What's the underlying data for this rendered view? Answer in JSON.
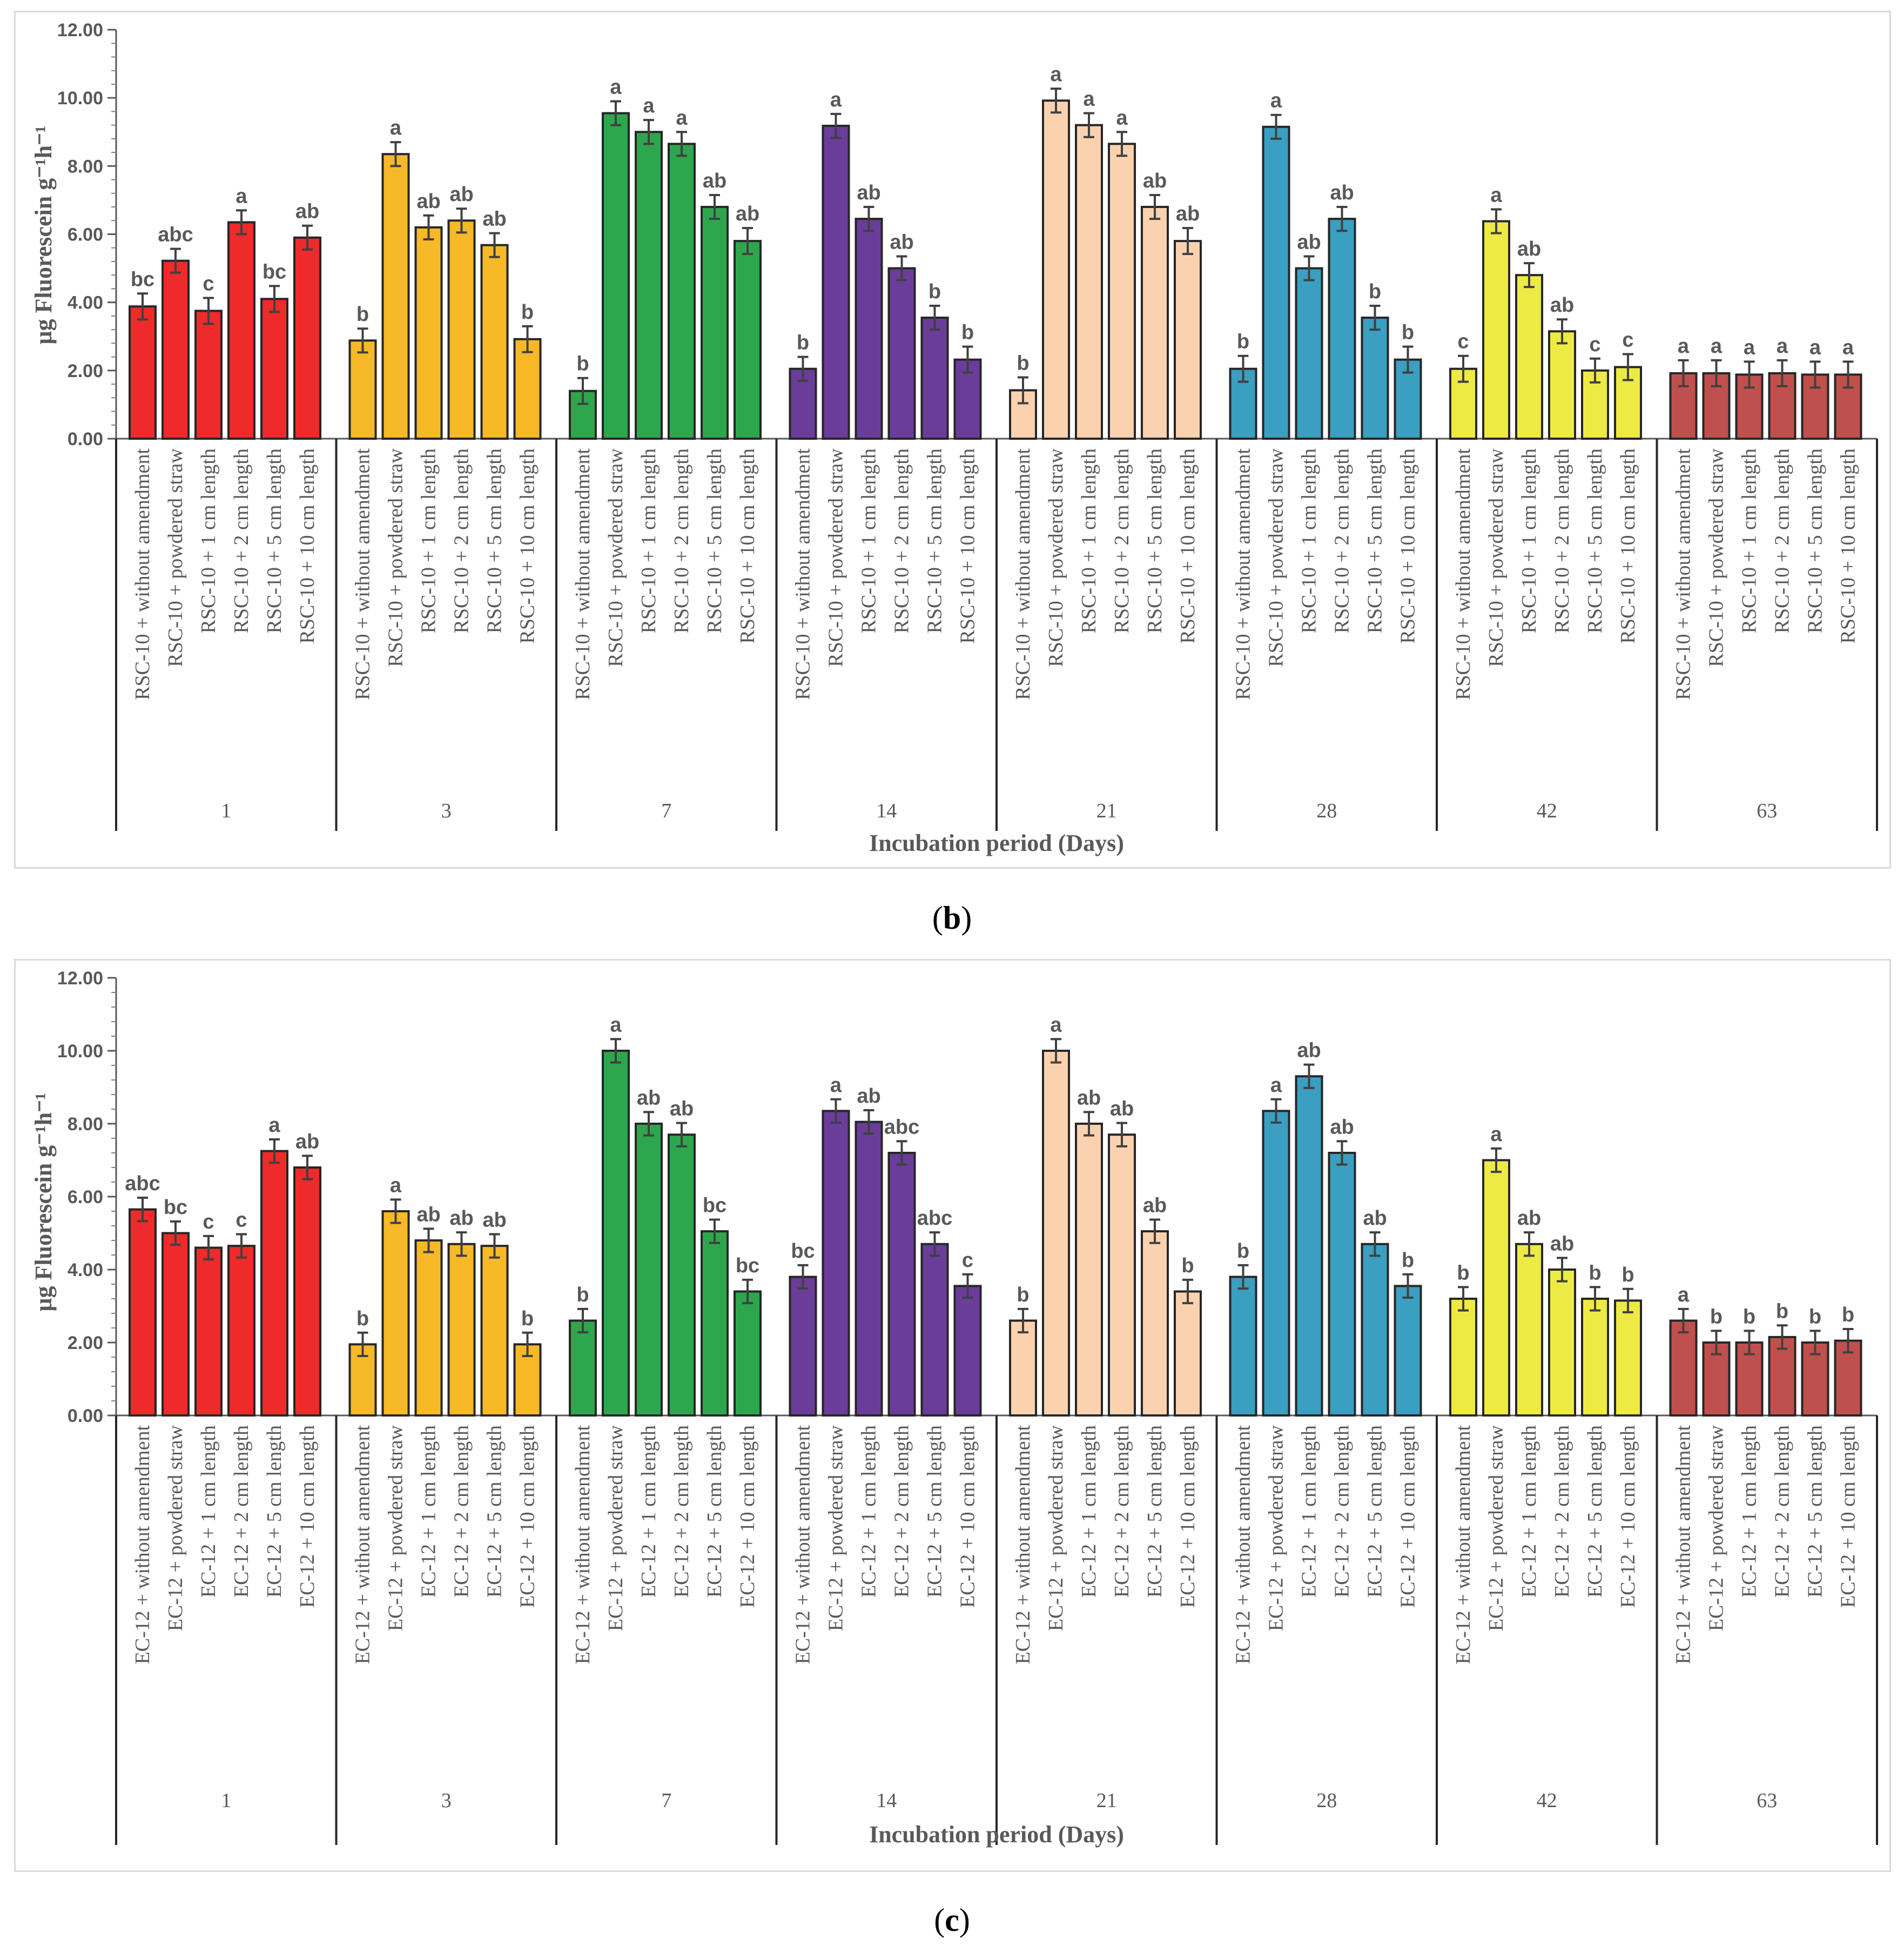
{
  "panel_labels": {
    "b": "b",
    "c": "c"
  },
  "chart_data": [
    {
      "id": "b",
      "type": "bar",
      "ylabel": "μg Fluorescein g⁻¹h⁻¹",
      "xlabel": "Incubation period (Days)",
      "ylim": [
        0,
        12
      ],
      "yticks": [
        "0.00",
        "2.00",
        "4.00",
        "6.00",
        "8.00",
        "10.00",
        "12.00"
      ],
      "groups": [
        "1",
        "3",
        "7",
        "14",
        "21",
        "28",
        "42",
        "63"
      ],
      "categories": [
        "RSC-10 + without amendment",
        "RSC-10 + powdered straw",
        "RSC-10 + 1 cm length",
        "RSC-10 + 2 cm length",
        "RSC-10 + 5 cm length",
        "RSC-10 + 10 cm length"
      ],
      "group_colors": [
        "#ee2a2a",
        "#f7b927",
        "#2ea64e",
        "#6a3d9a",
        "#fbd2b0",
        "#3a9fc0",
        "#eeea44",
        "#c0504d"
      ],
      "values": [
        [
          3.88,
          5.22,
          3.75,
          6.35,
          4.1,
          5.9
        ],
        [
          2.88,
          8.35,
          6.2,
          6.4,
          5.68,
          2.92
        ],
        [
          1.4,
          9.55,
          9.0,
          8.65,
          6.8,
          5.8
        ],
        [
          2.05,
          9.18,
          6.45,
          5.0,
          3.55,
          2.32
        ],
        [
          1.42,
          9.92,
          9.2,
          8.65,
          6.8,
          5.8
        ],
        [
          2.05,
          9.15,
          5.0,
          6.45,
          3.55,
          2.32
        ],
        [
          2.05,
          6.38,
          4.8,
          3.15,
          2.0,
          2.1
        ],
        [
          1.92,
          1.92,
          1.88,
          1.92,
          1.88,
          1.88
        ]
      ],
      "errors": [
        [
          0.38,
          0.35,
          0.38,
          0.35,
          0.38,
          0.35
        ],
        [
          0.35,
          0.35,
          0.35,
          0.35,
          0.35,
          0.38
        ],
        [
          0.38,
          0.35,
          0.35,
          0.35,
          0.35,
          0.38
        ],
        [
          0.35,
          0.35,
          0.35,
          0.35,
          0.35,
          0.38
        ],
        [
          0.38,
          0.35,
          0.35,
          0.35,
          0.35,
          0.38
        ],
        [
          0.38,
          0.35,
          0.35,
          0.35,
          0.35,
          0.38
        ],
        [
          0.38,
          0.35,
          0.35,
          0.35,
          0.35,
          0.38
        ],
        [
          0.38,
          0.38,
          0.38,
          0.38,
          0.38,
          0.38
        ]
      ],
      "letters": [
        [
          "bc",
          "abc",
          "c",
          "a",
          "bc",
          "ab"
        ],
        [
          "b",
          "a",
          "ab",
          "ab",
          "ab",
          "b"
        ],
        [
          "b",
          "a",
          "a",
          "a",
          "ab",
          "ab"
        ],
        [
          "b",
          "a",
          "ab",
          "ab",
          "b",
          "b"
        ],
        [
          "b",
          "a",
          "a",
          "a",
          "ab",
          "ab"
        ],
        [
          "b",
          "a",
          "ab",
          "ab",
          "b",
          "b"
        ],
        [
          "c",
          "a",
          "ab",
          "ab",
          "c",
          "c"
        ],
        [
          "a",
          "a",
          "a",
          "a",
          "a",
          "a"
        ]
      ]
    },
    {
      "id": "c",
      "type": "bar",
      "ylabel": "μg Fluorescein g⁻¹h⁻¹",
      "xlabel": "Incubation period (Days)",
      "ylim": [
        0,
        12
      ],
      "yticks": [
        "0.00",
        "2.00",
        "4.00",
        "6.00",
        "8.00",
        "10.00",
        "12.00"
      ],
      "groups": [
        "1",
        "3",
        "7",
        "14",
        "21",
        "28",
        "42",
        "63"
      ],
      "categories": [
        "EC-12 + without amendment",
        "EC-12 + powdered straw",
        "EC-12 + 1 cm length",
        "EC-12 + 2 cm length",
        "EC-12 + 5 cm length",
        "EC-12 + 10 cm length"
      ],
      "group_colors": [
        "#ee2a2a",
        "#f7b927",
        "#2ea64e",
        "#6a3d9a",
        "#fbd2b0",
        "#3a9fc0",
        "#eeea44",
        "#c0504d"
      ],
      "values": [
        [
          5.65,
          5.0,
          4.6,
          4.65,
          7.25,
          6.8
        ],
        [
          1.95,
          5.6,
          4.8,
          4.7,
          4.65,
          1.95
        ],
        [
          2.6,
          10.0,
          8.0,
          7.7,
          5.05,
          3.4
        ],
        [
          3.8,
          8.35,
          8.05,
          7.2,
          4.7,
          3.55
        ],
        [
          2.6,
          10.0,
          8.0,
          7.7,
          5.05,
          3.4
        ],
        [
          3.8,
          8.35,
          9.3,
          7.2,
          4.7,
          3.55
        ],
        [
          3.2,
          7.0,
          4.7,
          4.0,
          3.2,
          3.15
        ],
        [
          2.6,
          2.0,
          2.0,
          2.15,
          2.0,
          2.05
        ]
      ],
      "errors": [
        [
          0.32,
          0.32,
          0.32,
          0.32,
          0.32,
          0.32
        ],
        [
          0.32,
          0.32,
          0.32,
          0.32,
          0.32,
          0.32
        ],
        [
          0.32,
          0.32,
          0.32,
          0.32,
          0.32,
          0.32
        ],
        [
          0.32,
          0.32,
          0.32,
          0.32,
          0.32,
          0.32
        ],
        [
          0.32,
          0.32,
          0.32,
          0.32,
          0.32,
          0.32
        ],
        [
          0.32,
          0.32,
          0.32,
          0.32,
          0.32,
          0.32
        ],
        [
          0.32,
          0.32,
          0.32,
          0.32,
          0.32,
          0.32
        ],
        [
          0.32,
          0.32,
          0.32,
          0.32,
          0.32,
          0.32
        ]
      ],
      "letters": [
        [
          "abc",
          "bc",
          "c",
          "c",
          "a",
          "ab"
        ],
        [
          "b",
          "a",
          "ab",
          "ab",
          "ab",
          "b"
        ],
        [
          "b",
          "a",
          "ab",
          "ab",
          "bc",
          "bc"
        ],
        [
          "bc",
          "a",
          "ab",
          "abc",
          "abc",
          "c"
        ],
        [
          "b",
          "a",
          "ab",
          "ab",
          "ab",
          "b"
        ],
        [
          "b",
          "a",
          "ab",
          "ab",
          "ab",
          "b"
        ],
        [
          "b",
          "a",
          "ab",
          "ab",
          "b",
          "b"
        ],
        [
          "a",
          "b",
          "b",
          "b",
          "b",
          "b"
        ]
      ]
    }
  ]
}
